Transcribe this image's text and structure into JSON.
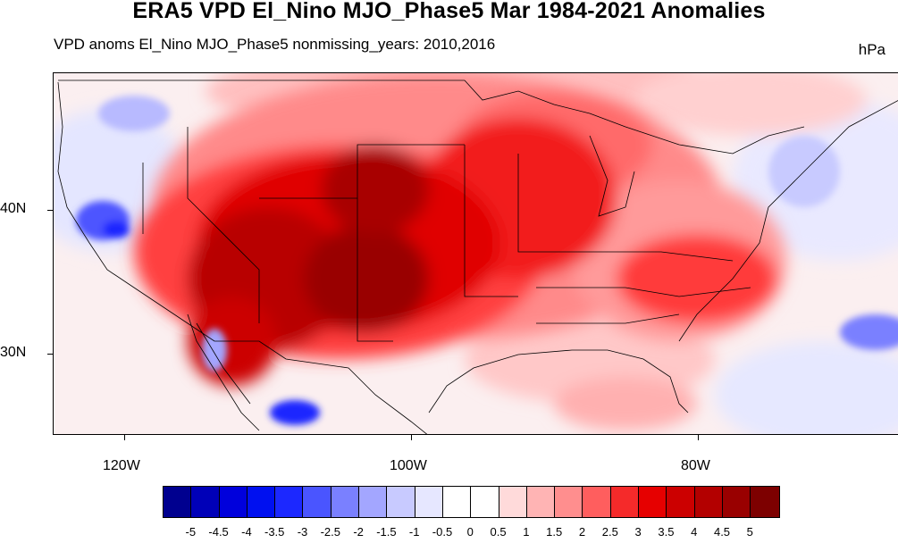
{
  "header": {
    "title": "ERA5 VPD El_Nino MJO_Phase5 Mar 1984-2021 Anomalies",
    "subtitle": "VPD anoms El_Nino MJO_Phase5 nonmissing_years: 2010,2016",
    "units": "hPa"
  },
  "axes": {
    "lat_labels": [
      "40N",
      "30N"
    ],
    "lon_labels": [
      "120W",
      "100W",
      "80W"
    ]
  },
  "colorbar": {
    "labels": [
      "-5",
      "-4.5",
      "-4",
      "-3.5",
      "-3",
      "-2.5",
      "-2",
      "-1.5",
      "-1",
      "-0.5",
      "0",
      "0.5",
      "1",
      "1.5",
      "2",
      "2.5",
      "3",
      "3.5",
      "4",
      "4.5",
      "5"
    ],
    "colors": [
      "#00008f",
      "#0000b8",
      "#0000dc",
      "#0010f0",
      "#1c28ff",
      "#4a55ff",
      "#7a80ff",
      "#a3a6ff",
      "#c8caff",
      "#e6e7ff",
      "#ffffff",
      "#ffffff",
      "#ffdada",
      "#ffb4b4",
      "#ff8e8e",
      "#ff5e5e",
      "#f52a2a",
      "#e60000",
      "#cc0000",
      "#b30000",
      "#990000",
      "#7d0000"
    ]
  }
}
